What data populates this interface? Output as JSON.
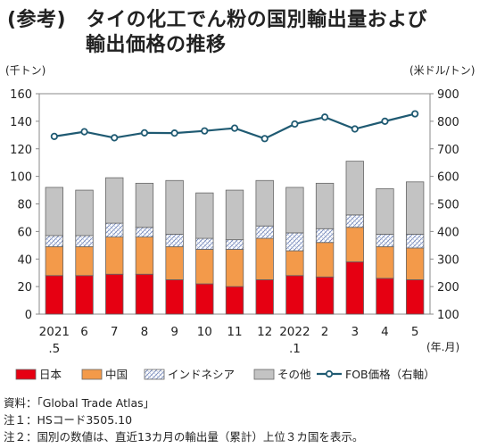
{
  "title_line1": "(参考)　タイの化工でん粉の国別輸出量および",
  "title_line2": "輸出価格の推移",
  "left_unit": "(千トン)",
  "right_unit": "(米ドル/トン)",
  "x_unit": "(年.月)",
  "notes": [
    "資料：「Global Trade Atlas」",
    "注１：HSコード3505.10",
    "注２：国別の数値は、直近13カ月の輸出量（累計）上位３カ国を表示。"
  ],
  "colors": {
    "japan": "#e60012",
    "china": "#f39a4a",
    "indonesia": "#ffffff",
    "other": "#c3c3c3",
    "fob": "#1f5a72"
  },
  "chart_data": {
    "type": "bar",
    "stacked": true,
    "categories": [
      "2021\n.5",
      "6",
      "7",
      "8",
      "9",
      "10",
      "11",
      "12",
      "2022\n.1",
      "2",
      "3",
      "4",
      "5"
    ],
    "series": [
      {
        "name": "日本",
        "values": [
          28,
          28,
          29,
          29,
          25,
          22,
          20,
          25,
          28,
          27,
          38,
          26,
          25
        ]
      },
      {
        "name": "中国",
        "values": [
          21,
          21,
          27,
          27,
          24,
          25,
          27,
          30,
          18,
          25,
          25,
          23,
          23
        ]
      },
      {
        "name": "インドネシア",
        "values": [
          8,
          8,
          10,
          7,
          9,
          8,
          7,
          9,
          13,
          10,
          9,
          9,
          10
        ]
      },
      {
        "name": "その他",
        "values": [
          35,
          33,
          33,
          32,
          39,
          33,
          36,
          33,
          33,
          33,
          39,
          33,
          38
        ]
      }
    ],
    "line_series": {
      "name": "FOB価格（右軸）",
      "values": [
        745,
        762,
        740,
        758,
        757,
        765,
        775,
        737,
        790,
        815,
        772,
        800,
        827
      ]
    },
    "y_left": {
      "min": 0,
      "max": 160,
      "ticks": [
        0,
        20,
        40,
        60,
        80,
        100,
        120,
        140,
        160
      ]
    },
    "y_right": {
      "min": 100,
      "max": 900,
      "ticks": [
        100,
        200,
        300,
        400,
        500,
        600,
        700,
        800,
        900
      ]
    },
    "legend_position": "bottom",
    "grid": false
  }
}
